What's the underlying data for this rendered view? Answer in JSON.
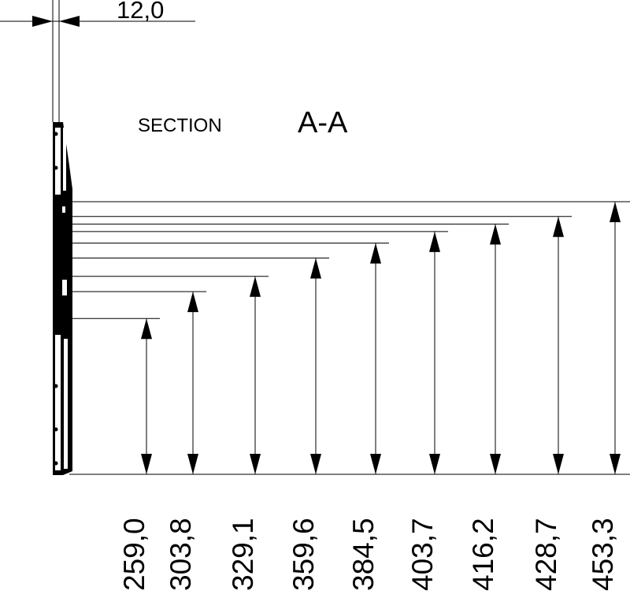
{
  "title": {
    "prefix": "SECTION",
    "label": "A-A"
  },
  "thickness_dimension": "12,0",
  "height_dimensions": [
    {
      "value": 259.0,
      "label": "259,0"
    },
    {
      "value": 303.8,
      "label": "303,8"
    },
    {
      "value": 329.1,
      "label": "329,1"
    },
    {
      "value": 359.6,
      "label": "359,6"
    },
    {
      "value": 384.5,
      "label": "384,5"
    },
    {
      "value": 403.7,
      "label": "403,7"
    },
    {
      "value": 416.2,
      "label": "416,2"
    },
    {
      "value": 428.7,
      "label": "428,7"
    },
    {
      "value": 453.3,
      "label": "453,3"
    }
  ],
  "colors": {
    "line": "#000000",
    "background": "#ffffff"
  }
}
